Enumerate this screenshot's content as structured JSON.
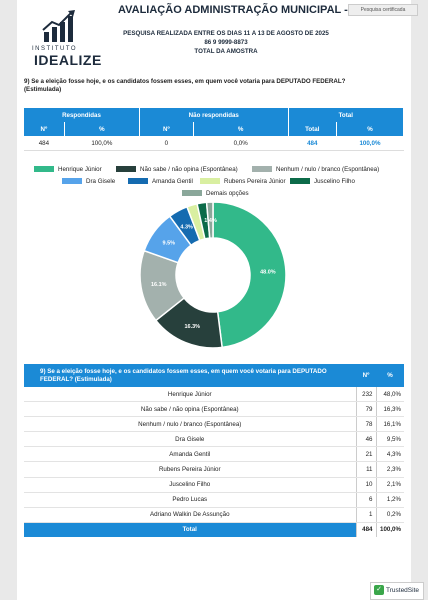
{
  "header": {
    "logo_small": "INSTITUTO",
    "logo_big": "IDEALIZE",
    "title": "AVALIAÇÃO ADMINISTRAÇÃO MUNICIPAL - TIMON - MA",
    "badge": "Pesquisa certificada",
    "line1": "PESQUISA REALIZADA ENTRE OS DIAS 11 A 13 DE AGOSTO DE 2025",
    "line2": "86 9 9999-8873",
    "line3": "TOTAL DA AMOSTRA"
  },
  "question": "9) Se a eleição fosse hoje, e os candidatos fossem esses, em quem você votaria para DEPUTADO FEDERAL? (Estimulada)",
  "summary": {
    "groups": [
      "Respondidas",
      "Não respondidas",
      "Total"
    ],
    "cols": [
      "Nº",
      "%",
      "Nº",
      "%",
      "Total",
      "%"
    ],
    "values": [
      "484",
      "100,0%",
      "0",
      "0,0%",
      "484",
      "100,0%"
    ]
  },
  "chart_data": {
    "type": "pie",
    "labels": [
      "Henrique Júnior",
      "Não sabe / não opina (Espontânea)",
      "Nenhum / nulo / branco (Espontânea)",
      "Dra Gisele",
      "Amanda Gentil",
      "Rubens Pereira Júnior",
      "Juscelino Filho",
      "Demais opções"
    ],
    "values": [
      48.0,
      16.3,
      16.1,
      9.5,
      4.3,
      2.3,
      2.1,
      1.4
    ],
    "slice_labels": [
      "48.0%",
      "16.3%",
      "16.1%",
      "9.5%",
      "4.3%",
      "",
      "",
      "1.4%"
    ],
    "colors": [
      "#32b98a",
      "#27403c",
      "#a3b1ad",
      "#56a3ea",
      "#156bb0",
      "#d9efa1",
      "#0c6b49",
      "#8aa79a"
    ]
  },
  "detail": {
    "question": "9) Se a eleição fosse hoje, e os candidatos fossem esses, em quem você votaria para DEPUTADO FEDERAL? (Estimulada)",
    "col_n": "Nº",
    "col_p": "%",
    "rows": [
      {
        "name": "Henrique Júnior",
        "n": "232",
        "p": "48,0%"
      },
      {
        "name": "Não sabe / não opina (Espontânea)",
        "n": "79",
        "p": "16,3%"
      },
      {
        "name": "Nenhum / nulo / branco (Espontânea)",
        "n": "78",
        "p": "16,1%"
      },
      {
        "name": "Dra Gisele",
        "n": "46",
        "p": "9,5%"
      },
      {
        "name": "Amanda Gentil",
        "n": "21",
        "p": "4,3%"
      },
      {
        "name": "Rubens Pereira Júnior",
        "n": "11",
        "p": "2,3%"
      },
      {
        "name": "Juscelino Filho",
        "n": "10",
        "p": "2,1%"
      },
      {
        "name": "Pedro Lucas",
        "n": "6",
        "p": "1,2%"
      },
      {
        "name": "Adriano Walkin De Assunção",
        "n": "1",
        "p": "0,2%"
      }
    ],
    "total_label": "Total",
    "total_n": "484",
    "total_p": "100,0%"
  },
  "footer": {
    "trusted": "TrustedSite"
  }
}
